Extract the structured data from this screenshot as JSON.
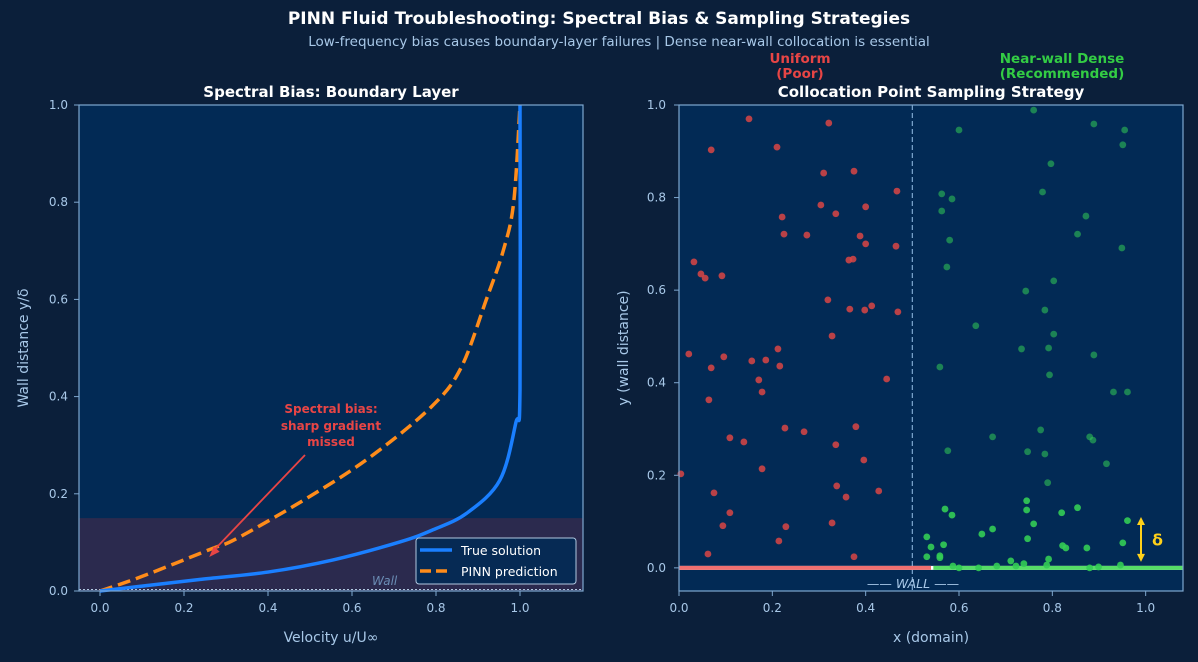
{
  "figure": {
    "title": "PINN Fluid Troubleshooting: Spectral Bias & Sampling Strategies",
    "subtitle": "Low-frequency bias causes boundary-layer failures  |  Dense near-wall collocation is essential",
    "colors": {
      "background": "#0b1f3a",
      "axes_bg": "#022a55",
      "text": "#a8c8e8",
      "title": "#ffffff"
    }
  },
  "chart_data": [
    {
      "type": "line",
      "title": "Spectral Bias: Boundary Layer",
      "xlabel": "Velocity  u/U∞",
      "ylabel": "Wall distance  y/δ",
      "xlim": [
        -0.05,
        1.15
      ],
      "ylim": [
        0,
        1.0
      ],
      "xticks": [
        "0.0",
        "0.2",
        "0.4",
        "0.6",
        "0.8",
        "1.0"
      ],
      "yticks": [
        "0.0",
        "0.2",
        "0.4",
        "0.6",
        "0.8",
        "1.0"
      ],
      "grid": false,
      "legend_position": "lower-right",
      "shaded_band": {
        "y_from": 0,
        "y_to": 0.15,
        "color": "#2b2a4e"
      },
      "wall_label": "Wall",
      "series": [
        {
          "name": "True solution",
          "color": "#1a7fff",
          "style": "solid",
          "x": [
            0,
            0.1,
            0.24,
            0.4,
            0.555,
            0.714,
            0.793,
            0.873,
            0.952,
            0.99,
            1.0,
            1.0
          ],
          "y": [
            0,
            0.01,
            0.024,
            0.039,
            0.064,
            0.101,
            0.126,
            0.16,
            0.228,
            0.346,
            0.414,
            1.0
          ]
        },
        {
          "name": "PINN prediction",
          "color": "#ff8c1a",
          "style": "dashed",
          "x": [
            0,
            0.1,
            0.26,
            0.33,
            0.51,
            0.65,
            0.79,
            0.86,
            0.92,
            0.96,
            0.985,
            1.0
          ],
          "y": [
            0,
            0.03,
            0.085,
            0.11,
            0.2,
            0.28,
            0.38,
            0.46,
            0.6,
            0.7,
            0.8,
            1.0
          ]
        }
      ],
      "annotation": {
        "text": [
          "Spectral bias:",
          "sharp gradient",
          "missed"
        ],
        "color": "#e84545",
        "points_to": [
          0.26,
          0.07
        ]
      }
    },
    {
      "type": "scatter",
      "title": "Collocation Point Sampling Strategy",
      "xlabel": "x (domain)",
      "ylabel": "y (wall distance)",
      "xlim": [
        0,
        1.08
      ],
      "ylim": [
        -0.05,
        1.0
      ],
      "xticks": [
        "0.0",
        "0.2",
        "0.4",
        "0.6",
        "0.8",
        "1.0"
      ],
      "yticks": [
        "0.0",
        "0.2",
        "0.4",
        "0.6",
        "0.8",
        "1.0"
      ],
      "grid": false,
      "divider_x": 0.5,
      "wall_label": "——  WALL  ——",
      "delta_label": "δ",
      "delta_range": [
        0.0,
        0.11
      ],
      "delta_x": 0.99,
      "delta_color": "#ffd11a",
      "groups": [
        {
          "label": [
            "Uniform",
            "(Poor)"
          ],
          "color": "#d94545",
          "wall_color": "#f07070",
          "wall_range": [
            0,
            0.54
          ],
          "points": [
            [
              0.15,
              0.97
            ],
            [
              0.321,
              0.961
            ],
            [
              0.069,
              0.903
            ],
            [
              0.21,
              0.909
            ],
            [
              0.31,
              0.853
            ],
            [
              0.375,
              0.857
            ],
            [
              0.467,
              0.814
            ],
            [
              0.304,
              0.784
            ],
            [
              0.4,
              0.78
            ],
            [
              0.221,
              0.758
            ],
            [
              0.336,
              0.765
            ],
            [
              0.225,
              0.721
            ],
            [
              0.274,
              0.719
            ],
            [
              0.388,
              0.717
            ],
            [
              0.4,
              0.7
            ],
            [
              0.465,
              0.695
            ],
            [
              0.032,
              0.661
            ],
            [
              0.364,
              0.665
            ],
            [
              0.373,
              0.667
            ],
            [
              0.047,
              0.635
            ],
            [
              0.056,
              0.626
            ],
            [
              0.092,
              0.631
            ],
            [
              0.319,
              0.579
            ],
            [
              0.366,
              0.559
            ],
            [
              0.398,
              0.557
            ],
            [
              0.413,
              0.566
            ],
            [
              0.469,
              0.553
            ],
            [
              0.328,
              0.501
            ],
            [
              0.212,
              0.473
            ],
            [
              0.021,
              0.462
            ],
            [
              0.096,
              0.456
            ],
            [
              0.156,
              0.447
            ],
            [
              0.186,
              0.449
            ],
            [
              0.216,
              0.436
            ],
            [
              0.069,
              0.432
            ],
            [
              0.445,
              0.408
            ],
            [
              0.171,
              0.406
            ],
            [
              0.178,
              0.38
            ],
            [
              0.064,
              0.363
            ],
            [
              0.227,
              0.302
            ],
            [
              0.268,
              0.294
            ],
            [
              0.379,
              0.305
            ],
            [
              0.109,
              0.281
            ],
            [
              0.139,
              0.272
            ],
            [
              0.336,
              0.266
            ],
            [
              0.396,
              0.233
            ],
            [
              0.004,
              0.203
            ],
            [
              0.178,
              0.214
            ],
            [
              0.075,
              0.162
            ],
            [
              0.338,
              0.177
            ],
            [
              0.358,
              0.153
            ],
            [
              0.428,
              0.166
            ],
            [
              0.109,
              0.119
            ],
            [
              0.094,
              0.091
            ],
            [
              0.229,
              0.089
            ],
            [
              0.328,
              0.097
            ],
            [
              0.214,
              0.058
            ],
            [
              0.062,
              0.03
            ],
            [
              0.375,
              0.024
            ]
          ]
        },
        {
          "label": [
            "Near-wall Dense",
            "(Recommended)"
          ],
          "color": "#33cc55",
          "wall_color": "#55dd66",
          "wall_range": [
            0.545,
            1.08
          ],
          "points": [
            [
              0.76,
              0.989
            ],
            [
              0.889,
              0.959
            ],
            [
              0.955,
              0.946
            ],
            [
              0.6,
              0.946
            ],
            [
              0.951,
              0.914
            ],
            [
              0.797,
              0.873
            ],
            [
              0.779,
              0.812
            ],
            [
              0.563,
              0.808
            ],
            [
              0.585,
              0.797
            ],
            [
              0.563,
              0.771
            ],
            [
              0.872,
              0.76
            ],
            [
              0.854,
              0.721
            ],
            [
              0.58,
              0.708
            ],
            [
              0.949,
              0.691
            ],
            [
              0.574,
              0.65
            ],
            [
              0.803,
              0.62
            ],
            [
              0.743,
              0.598
            ],
            [
              0.784,
              0.557
            ],
            [
              0.636,
              0.523
            ],
            [
              0.803,
              0.505
            ],
            [
              0.734,
              0.473
            ],
            [
              0.792,
              0.475
            ],
            [
              0.889,
              0.46
            ],
            [
              0.559,
              0.434
            ],
            [
              0.794,
              0.417
            ],
            [
              0.931,
              0.38
            ],
            [
              0.961,
              0.38
            ],
            [
              0.775,
              0.298
            ],
            [
              0.672,
              0.283
            ],
            [
              0.88,
              0.283
            ],
            [
              0.887,
              0.276
            ],
            [
              0.576,
              0.253
            ],
            [
              0.747,
              0.251
            ],
            [
              0.784,
              0.246
            ],
            [
              0.916,
              0.225
            ],
            [
              0.79,
              0.184
            ],
            [
              0.745,
              0.145
            ],
            [
              0.745,
              0.125
            ],
            [
              0.57,
              0.127
            ],
            [
              0.585,
              0.114
            ],
            [
              0.82,
              0.119
            ],
            [
              0.854,
              0.13
            ],
            [
              0.961,
              0.102
            ],
            [
              0.76,
              0.095
            ],
            [
              0.672,
              0.084
            ],
            [
              0.649,
              0.073
            ],
            [
              0.531,
              0.067
            ],
            [
              0.747,
              0.063
            ],
            [
              0.54,
              0.045
            ],
            [
              0.567,
              0.05
            ],
            [
              0.951,
              0.054
            ],
            [
              0.822,
              0.048
            ],
            [
              0.829,
              0.043
            ],
            [
              0.874,
              0.043
            ],
            [
              0.531,
              0.024
            ],
            [
              0.559,
              0.026
            ],
            [
              0.559,
              0.022
            ],
            [
              0.711,
              0.015
            ],
            [
              0.792,
              0.019
            ],
            [
              0.587,
              0.004
            ],
            [
              0.6,
              0.0
            ],
            [
              0.642,
              0.0
            ],
            [
              0.681,
              0.004
            ],
            [
              0.722,
              0.004
            ],
            [
              0.739,
              0.009
            ],
            [
              0.788,
              0.006
            ],
            [
              0.88,
              0.0
            ],
            [
              0.899,
              0.002
            ],
            [
              0.946,
              0.006
            ]
          ]
        }
      ]
    }
  ]
}
